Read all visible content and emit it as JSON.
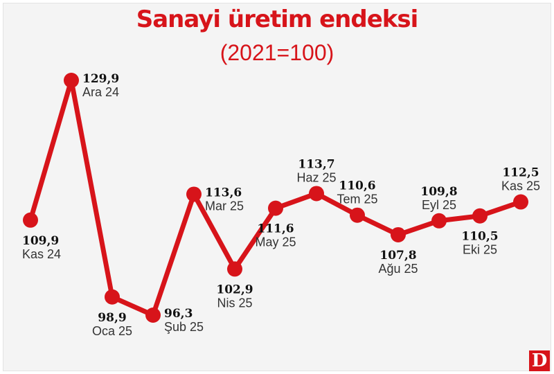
{
  "chart_data": {
    "type": "line",
    "title": "Sanayi üretim endeksi",
    "subtitle": "(2021=100)",
    "categories": [
      "Kas 24",
      "Ara 24",
      "Oca 25",
      "Şub 25",
      "Mar 25",
      "Nis 25",
      "May 25",
      "Haz 25",
      "Tem 25",
      "Ağu 25",
      "Eyl 25",
      "Eki 25",
      "Kas 25"
    ],
    "value_labels": [
      "109,9",
      "129,9",
      "98,9",
      "96,3",
      "113,6",
      "102,9",
      "111,6",
      "113,7",
      "110,6",
      "107,8",
      "109,8",
      "110,5",
      "112,5"
    ],
    "series": [
      {
        "values": [
          109.9,
          129.9,
          98.9,
          96.3,
          113.6,
          102.9,
          111.6,
          113.7,
          110.6,
          107.8,
          109.8,
          110.5,
          112.5
        ]
      }
    ],
    "label_positions": [
      "below",
      "right",
      "below",
      "right",
      "right",
      "below",
      "below",
      "above",
      "above",
      "below",
      "above",
      "below",
      "above"
    ],
    "line_color": "#d7141a",
    "grid": false,
    "legend": "none"
  },
  "brand": {
    "logo_text": "D",
    "color": "#d7141a"
  }
}
